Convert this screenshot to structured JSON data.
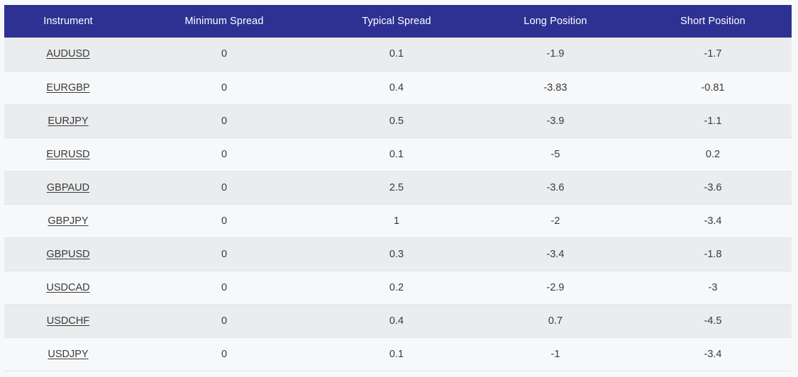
{
  "table": {
    "headers": [
      "Instrument",
      "Minimum Spread",
      "Typical Spread",
      "Long Position",
      "Short Position"
    ],
    "rows": [
      {
        "instrument": "AUDUSD",
        "min_spread": "0",
        "typical_spread": "0.1",
        "long": "-1.9",
        "short": "-1.7"
      },
      {
        "instrument": "EURGBP",
        "min_spread": "0",
        "typical_spread": "0.4",
        "long": "-3.83",
        "short": "-0.81"
      },
      {
        "instrument": "EURJPY",
        "min_spread": "0",
        "typical_spread": "0.5",
        "long": "-3.9",
        "short": "-1.1"
      },
      {
        "instrument": "EURUSD",
        "min_spread": "0",
        "typical_spread": "0.1",
        "long": "-5",
        "short": "0.2"
      },
      {
        "instrument": "GBPAUD",
        "min_spread": "0",
        "typical_spread": "2.5",
        "long": "-3.6",
        "short": "-3.6"
      },
      {
        "instrument": "GBPJPY",
        "min_spread": "0",
        "typical_spread": "1",
        "long": "-2",
        "short": "-3.4"
      },
      {
        "instrument": "GBPUSD",
        "min_spread": "0",
        "typical_spread": "0.3",
        "long": "-3.4",
        "short": "-1.8"
      },
      {
        "instrument": "USDCAD",
        "min_spread": "0",
        "typical_spread": "0.2",
        "long": "-2.9",
        "short": "-3"
      },
      {
        "instrument": "USDCHF",
        "min_spread": "0",
        "typical_spread": "0.4",
        "long": "0.7",
        "short": "-4.5"
      },
      {
        "instrument": "USDJPY",
        "min_spread": "0",
        "typical_spread": "0.1",
        "long": "-1",
        "short": "-3.4"
      }
    ]
  },
  "colors": {
    "header_bg": "#2e3192",
    "header_text": "#ffffff",
    "row_odd": "#ebecee",
    "row_even": "#f7f8fa",
    "text": "#3a3a3a"
  }
}
